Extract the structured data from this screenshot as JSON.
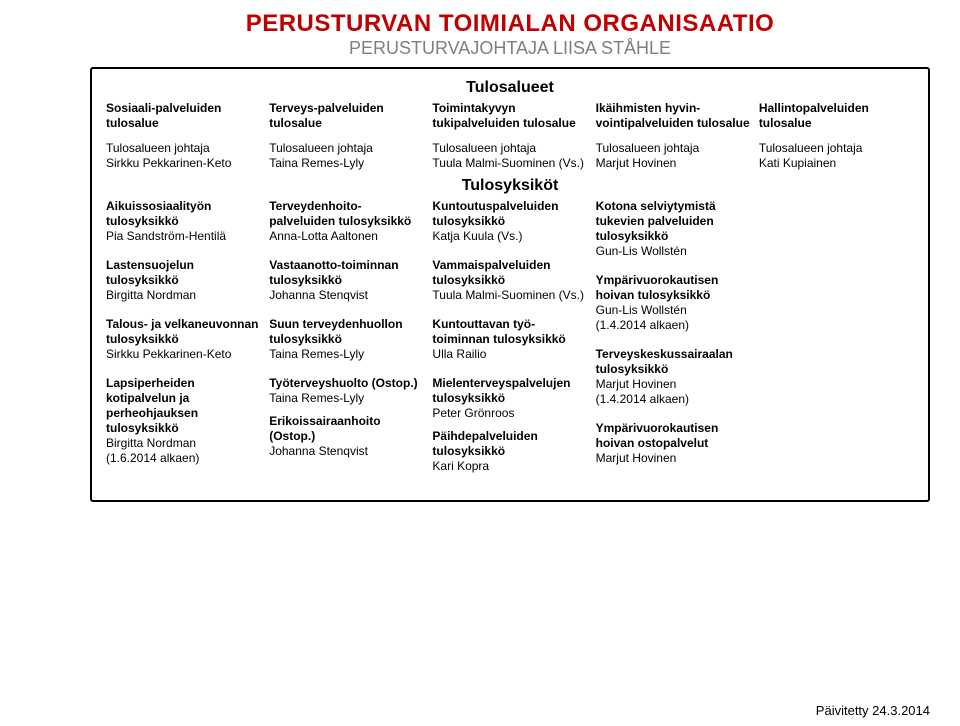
{
  "colors": {
    "title": "#c00000",
    "subtitle": "#7f7f7f",
    "text": "#000000",
    "border": "#000000",
    "background": "#ffffff"
  },
  "title": "PERUSTURVAN TOIMIALAN ORGANISAATIO",
  "subtitle": "PERUSTURVAJOHTAJA LIISA STÅHLE",
  "bands": {
    "areas_label": "Tulosalueet",
    "units_label": "Tulosyksiköt"
  },
  "areas": [
    {
      "heading": "Sosiaali-palveluiden tulosalue",
      "leader": "Tulosalueen johtaja\nSirkku Pekkarinen-Keto"
    },
    {
      "heading": "Terveys-palveluiden tulosalue",
      "leader": "Tulosalueen johtaja\nTaina Remes-Lyly"
    },
    {
      "heading": "Toimintakyvyn tukipalveluiden tulosalue",
      "leader": "Tulosalueen johtaja\nTuula Malmi-Suominen (Vs.)"
    },
    {
      "heading": "Ikäihmisten hyvin-vointipalveluiden tulosalue",
      "leader": "Tulosalueen johtaja\nMarjut Hovinen"
    },
    {
      "heading": "Hallintopalveluiden tulosalue",
      "leader": "Tulosalueen johtaja\nKati Kupiainen"
    }
  ],
  "units": [
    [
      {
        "title": "Aikuissosiaalityön tulosyksikkö",
        "person": "Pia Sandström-Hentilä"
      },
      {
        "title": "Lastensuojelun tulosyksikkö",
        "person": "Birgitta Nordman"
      },
      {
        "title": "Talous- ja velkaneuvonnan tulosyksikkö",
        "person": "Sirkku Pekkarinen-Keto"
      },
      {
        "title": "Lapsiperheiden kotipalvelun ja perheohjauksen tulosyksikkö",
        "person": "Birgitta Nordman\n(1.6.2014 alkaen)"
      }
    ],
    [
      {
        "title": "Terveydenhoito-palveluiden tulosyksikkö",
        "person": "Anna-Lotta Aaltonen"
      },
      {
        "title": "Vastaanotto-toiminnan tulosyksikkö",
        "person": "Johanna Stenqvist"
      },
      {
        "title": "Suun terveydenhuollon tulosyksikkö",
        "person": "Taina Remes-Lyly"
      },
      {
        "title": "Työterveyshuolto (Ostop.)",
        "person": "Taina Remes-Lyly"
      },
      {
        "title": "Erikoissairaanhoito (Ostop.)",
        "person": "Johanna Stenqvist"
      }
    ],
    [
      {
        "title": "Kuntoutuspalveluiden tulosyksikkö",
        "person": "Katja Kuula (Vs.)"
      },
      {
        "title": "Vammaispalveluiden tulosyksikkö",
        "person": "Tuula Malmi-Suominen (Vs.)"
      },
      {
        "title": "Kuntouttavan työ-toiminnan tulosyksikkö",
        "person": "Ulla Railio"
      },
      {
        "title": "Mielenterveyspalvelujen tulosyksikkö",
        "person": "Peter Grönroos"
      },
      {
        "title": "Päihdepalveluiden tulosyksikkö",
        "person": "Kari Kopra"
      }
    ],
    [
      {
        "title": "Kotona selviytymistä tukevien palveluiden tulosyksikkö",
        "person": "Gun-Lis Wollstén"
      },
      {
        "title": "Ympärivuorokautisen hoivan tulosyksikkö",
        "person": "Gun-Lis Wollstén\n(1.4.2014 alkaen)"
      },
      {
        "title": "Terveyskeskussairaalan tulosyksikkö",
        "person": "Marjut Hovinen\n(1.4.2014 alkaen)"
      },
      {
        "title": "Ympärivuorokautisen hoivan ostopalvelut",
        "person": "Marjut Hovinen"
      }
    ],
    []
  ],
  "footer": "Päivitetty 24.3.2014"
}
